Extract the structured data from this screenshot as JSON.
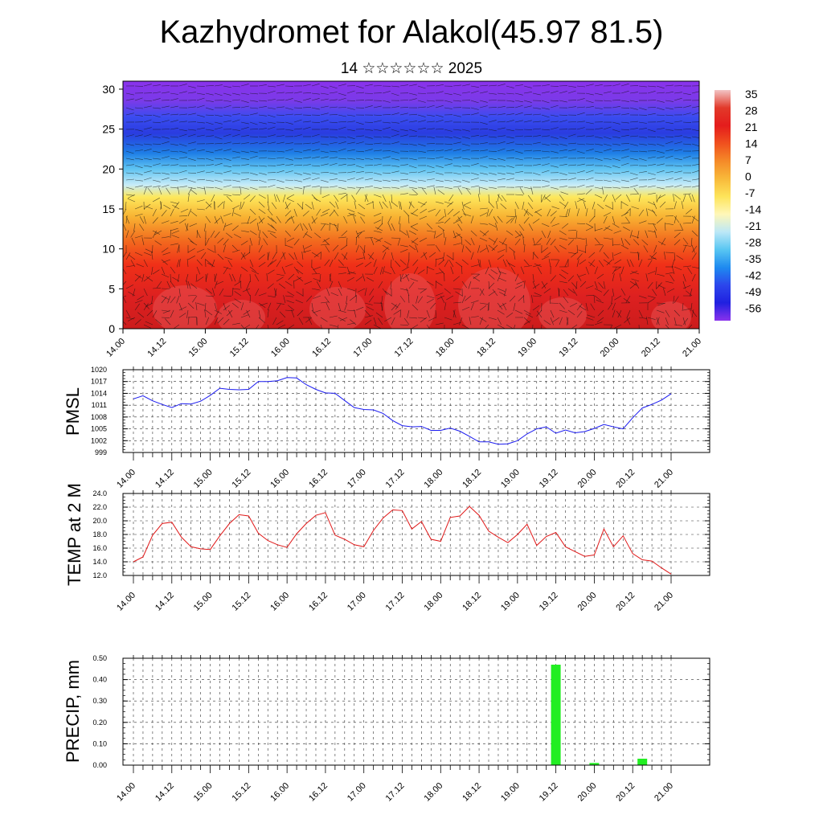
{
  "page": {
    "title": "Kazhydromet for Alakol(45.97 81.5)",
    "subtitle": "14 ☆☆☆☆☆☆ 2025"
  },
  "time_ticks": [
    "14.00",
    "14.12",
    "15.00",
    "15.12",
    "16.00",
    "16.12",
    "17.00",
    "17.12",
    "18.00",
    "18.12",
    "19.00",
    "19.12",
    "20.00",
    "20.12",
    "21.00"
  ],
  "chart_data": [
    {
      "type": "heatmap",
      "description_role": "temperature cross-section with wind barbs",
      "x_range": [
        "14.00",
        "21.00"
      ],
      "y_ticks": [
        0,
        5,
        10,
        15,
        20,
        25,
        30
      ],
      "ylim": [
        0,
        31
      ],
      "colorbar": {
        "labels": [
          "35",
          "28",
          "21",
          "14",
          "7",
          "0",
          "-7",
          "-14",
          "-21",
          "-28",
          "-35",
          "-42",
          "-49",
          "-56"
        ],
        "colors": [
          "#f2c4c4",
          "#e23a2a",
          "#e41c1c",
          "#f0501e",
          "#f58a28",
          "#f8b93a",
          "#fde45a",
          "#fff7b8",
          "#bce8f7",
          "#58c6f2",
          "#1e8af0",
          "#2c46ec",
          "#2020e0",
          "#8a32ec"
        ]
      },
      "vertical_profile": [
        {
          "height": 0,
          "color": "#cc1c1c"
        },
        {
          "height": 4,
          "color": "#dd2020"
        },
        {
          "height": 8,
          "color": "#f03018"
        },
        {
          "height": 11,
          "color": "#f26a1e"
        },
        {
          "height": 14,
          "color": "#f8b232"
        },
        {
          "height": 16.5,
          "color": "#fde85c"
        },
        {
          "height": 18,
          "color": "#c8ecf8"
        },
        {
          "height": 20,
          "color": "#5fc4f2"
        },
        {
          "height": 22,
          "color": "#1e7ee6"
        },
        {
          "height": 24.5,
          "color": "#2a3ce0"
        },
        {
          "height": 26.5,
          "color": "#3a4cf0"
        },
        {
          "height": 28.5,
          "color": "#7a3ae8"
        },
        {
          "height": 31,
          "color": "#8a32ec"
        }
      ]
    },
    {
      "type": "line",
      "ylabel": "PMSL",
      "ylim": [
        999,
        1020
      ],
      "y_ticks": [
        "1020",
        "1017",
        "1014",
        "1011",
        "1008",
        "1005",
        "1002",
        "999"
      ],
      "series": [
        {
          "color": "#1a1af0",
          "values": [
            1012.6,
            1013.4,
            1012.1,
            1011.2,
            1010.4,
            1011.4,
            1011.3,
            1012.0,
            1013.5,
            1015.3,
            1015.0,
            1014.9,
            1015.0,
            1017.0,
            1017.0,
            1017.2,
            1018.0,
            1017.9,
            1016.2,
            1015.0,
            1014.1,
            1014.0,
            1012.2,
            1010.4,
            1009.9,
            1009.8,
            1008.9,
            1007.1,
            1005.8,
            1005.5,
            1005.6,
            1004.6,
            1004.6,
            1005.2,
            1004.4,
            1003.1,
            1001.7,
            1001.7,
            1001.1,
            1001.2,
            1002.0,
            1003.7,
            1005.0,
            1005.5,
            1003.9,
            1004.7,
            1004.0,
            1004.3,
            1005.1,
            1006.1,
            1005.5,
            1005.0,
            1007.8,
            1010.3,
            1011.2,
            1012.3,
            1013.9
          ]
        }
      ]
    },
    {
      "type": "line",
      "ylabel": "TEMP at 2 M",
      "ylim": [
        12,
        24
      ],
      "y_ticks": [
        "24.0",
        "22.0",
        "20.0",
        "18.0",
        "16.0",
        "14.0",
        "12.0"
      ],
      "series": [
        {
          "color": "#e01818",
          "values": [
            14.0,
            14.7,
            17.9,
            19.6,
            19.8,
            17.6,
            16.2,
            15.9,
            15.8,
            17.8,
            19.6,
            20.9,
            20.7,
            18.2,
            17.1,
            16.5,
            16.1,
            18.1,
            19.6,
            20.8,
            21.2,
            17.9,
            17.3,
            16.5,
            16.2,
            18.6,
            20.4,
            21.6,
            21.5,
            18.8,
            19.9,
            17.3,
            17.0,
            20.5,
            20.7,
            22.1,
            20.8,
            18.5,
            17.6,
            16.8,
            18.0,
            19.5,
            16.4,
            17.7,
            18.3,
            16.2,
            15.5,
            14.8,
            15.0,
            18.8,
            16.2,
            17.8,
            15.2,
            14.3,
            14.1,
            13.1,
            12.2
          ]
        }
      ]
    },
    {
      "type": "bar",
      "ylabel": "PRECIP, mm",
      "ylim": [
        0,
        0.5
      ],
      "y_ticks": [
        "0.50",
        "0.40",
        "0.30",
        "0.20",
        "0.10",
        "0.00"
      ],
      "bar_color": "#22ee22",
      "bars": [
        {
          "x_step": 44,
          "value": 0.47
        },
        {
          "x_step": 48,
          "value": 0.01
        },
        {
          "x_step": 53,
          "value": 0.03
        }
      ]
    }
  ]
}
